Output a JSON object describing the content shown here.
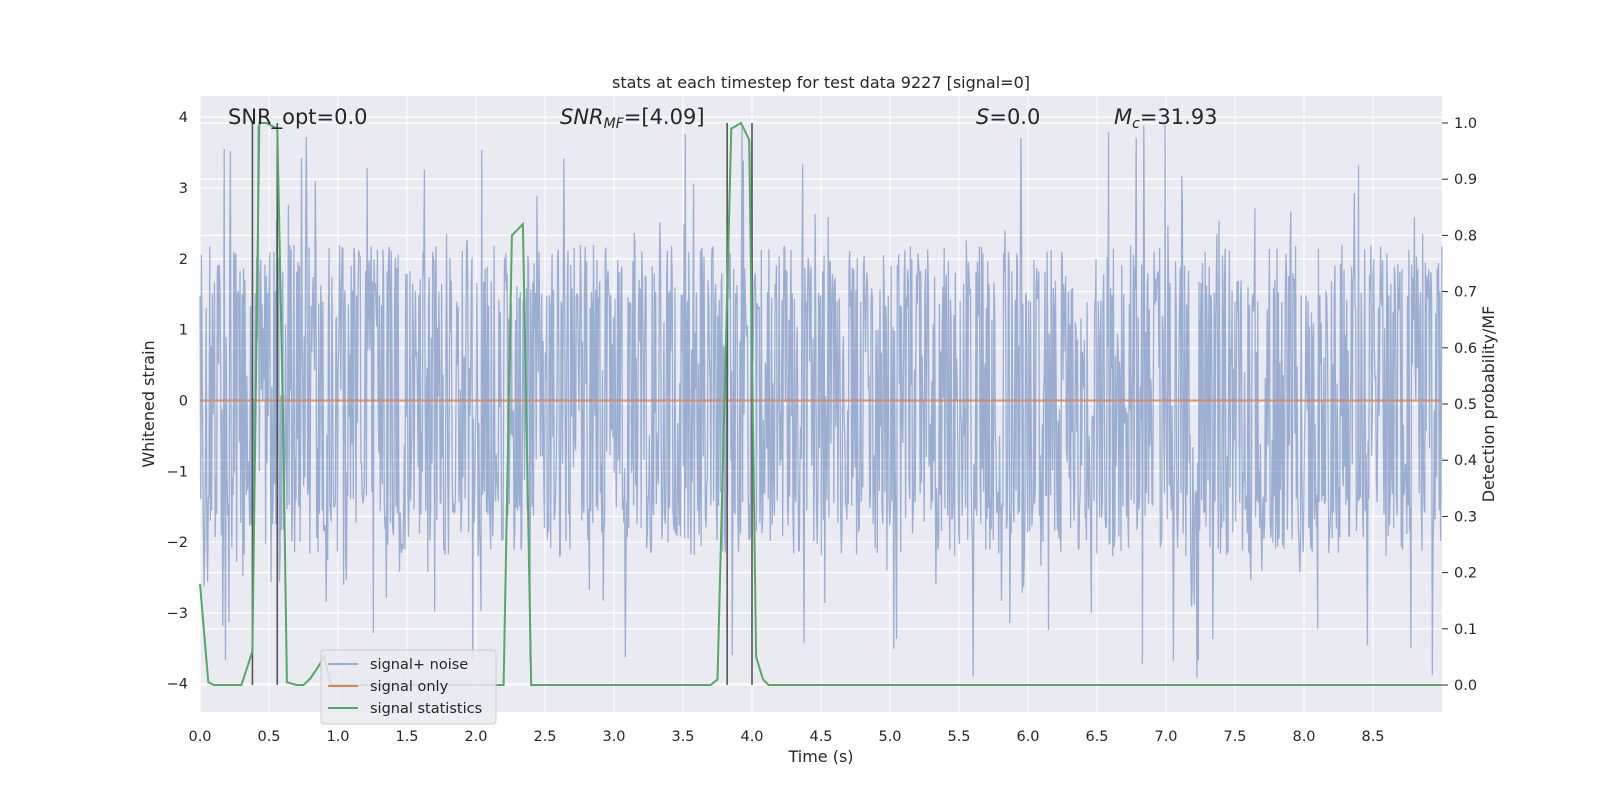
{
  "chart_data": {
    "type": "line",
    "title": "stats at each timestep for test data 9227 [signal=0]",
    "xlabel": "Time (s)",
    "ylabel": "Whitened strain",
    "y2label": "Detection probability/MF",
    "xlim": [
      0.0,
      9.0
    ],
    "ylim": [
      -4.4,
      4.3
    ],
    "y2lim": [
      -0.048,
      1.048
    ],
    "grid": true,
    "legend_position": "lower-left",
    "x_ticks": [
      "0.0",
      "0.5",
      "1.0",
      "1.5",
      "2.0",
      "2.5",
      "3.0",
      "3.5",
      "4.0",
      "4.5",
      "5.0",
      "5.5",
      "6.0",
      "6.5",
      "7.0",
      "7.5",
      "8.0",
      "8.5"
    ],
    "y_ticks": [
      "−4",
      "−3",
      "−2",
      "−1",
      "0",
      "1",
      "2",
      "3",
      "4"
    ],
    "y2_ticks": [
      "0.0",
      "0.1",
      "0.2",
      "0.3",
      "0.4",
      "0.5",
      "0.6",
      "0.7",
      "0.8",
      "0.9",
      "1.0"
    ],
    "annotations": {
      "snr_opt": "SNR_opt=0.0",
      "snr_mf_main": "SNR",
      "snr_mf_sub": "MF",
      "snr_mf_value": "=[4.09]",
      "s_var": "S",
      "s_value": "=0.0",
      "mc_var": "M",
      "mc_sub": "c",
      "mc_value": "=31.93"
    },
    "series": [
      {
        "name": "signal+ noise",
        "color": "#4c72b0",
        "opacity": 0.5,
        "axis": "left",
        "description_stats": {
          "band_low": -1.6,
          "band_high": 1.6,
          "peak_min": -4.0,
          "peak_max": 3.9
        }
      },
      {
        "name": "signal only",
        "color": "#dd8452",
        "axis": "left",
        "x": [
          0.0,
          9.0
        ],
        "y": [
          0.0,
          0.0
        ]
      },
      {
        "name": "signal statistics",
        "color": "#55a868",
        "axis": "right",
        "x": [
          0.0,
          0.06,
          0.1,
          0.3,
          0.38,
          0.43,
          0.48,
          0.56,
          0.6,
          0.63,
          0.7,
          0.75,
          0.8,
          0.85,
          0.9,
          0.95,
          1.2,
          2.2,
          2.26,
          2.3,
          2.34,
          2.4,
          2.6,
          3.7,
          3.75,
          3.85,
          3.92,
          3.98,
          4.03,
          4.08,
          4.12,
          4.2,
          9.0
        ],
        "y": [
          0.18,
          0.005,
          0.0,
          0.0,
          0.06,
          1.0,
          1.0,
          0.99,
          0.5,
          0.005,
          0.0,
          0.0,
          0.012,
          0.03,
          0.05,
          0.0,
          0.0,
          0.0,
          0.8,
          0.81,
          0.82,
          0.0,
          0.0,
          0.0,
          0.01,
          0.99,
          1.0,
          0.97,
          0.05,
          0.01,
          0.0,
          0.0,
          0.0
        ]
      }
    ],
    "vertical_markers": {
      "color": "#555555",
      "lines": [
        {
          "x": 0.38,
          "y_from": -0.0,
          "y_to": 1.0
        },
        {
          "x": 0.56,
          "y_from": -0.0,
          "y_to": 1.0
        },
        {
          "x": 3.82,
          "y_from": -0.0,
          "y_to": 1.0
        },
        {
          "x": 4.0,
          "y_from": -0.0,
          "y_to": 1.0
        }
      ]
    }
  }
}
